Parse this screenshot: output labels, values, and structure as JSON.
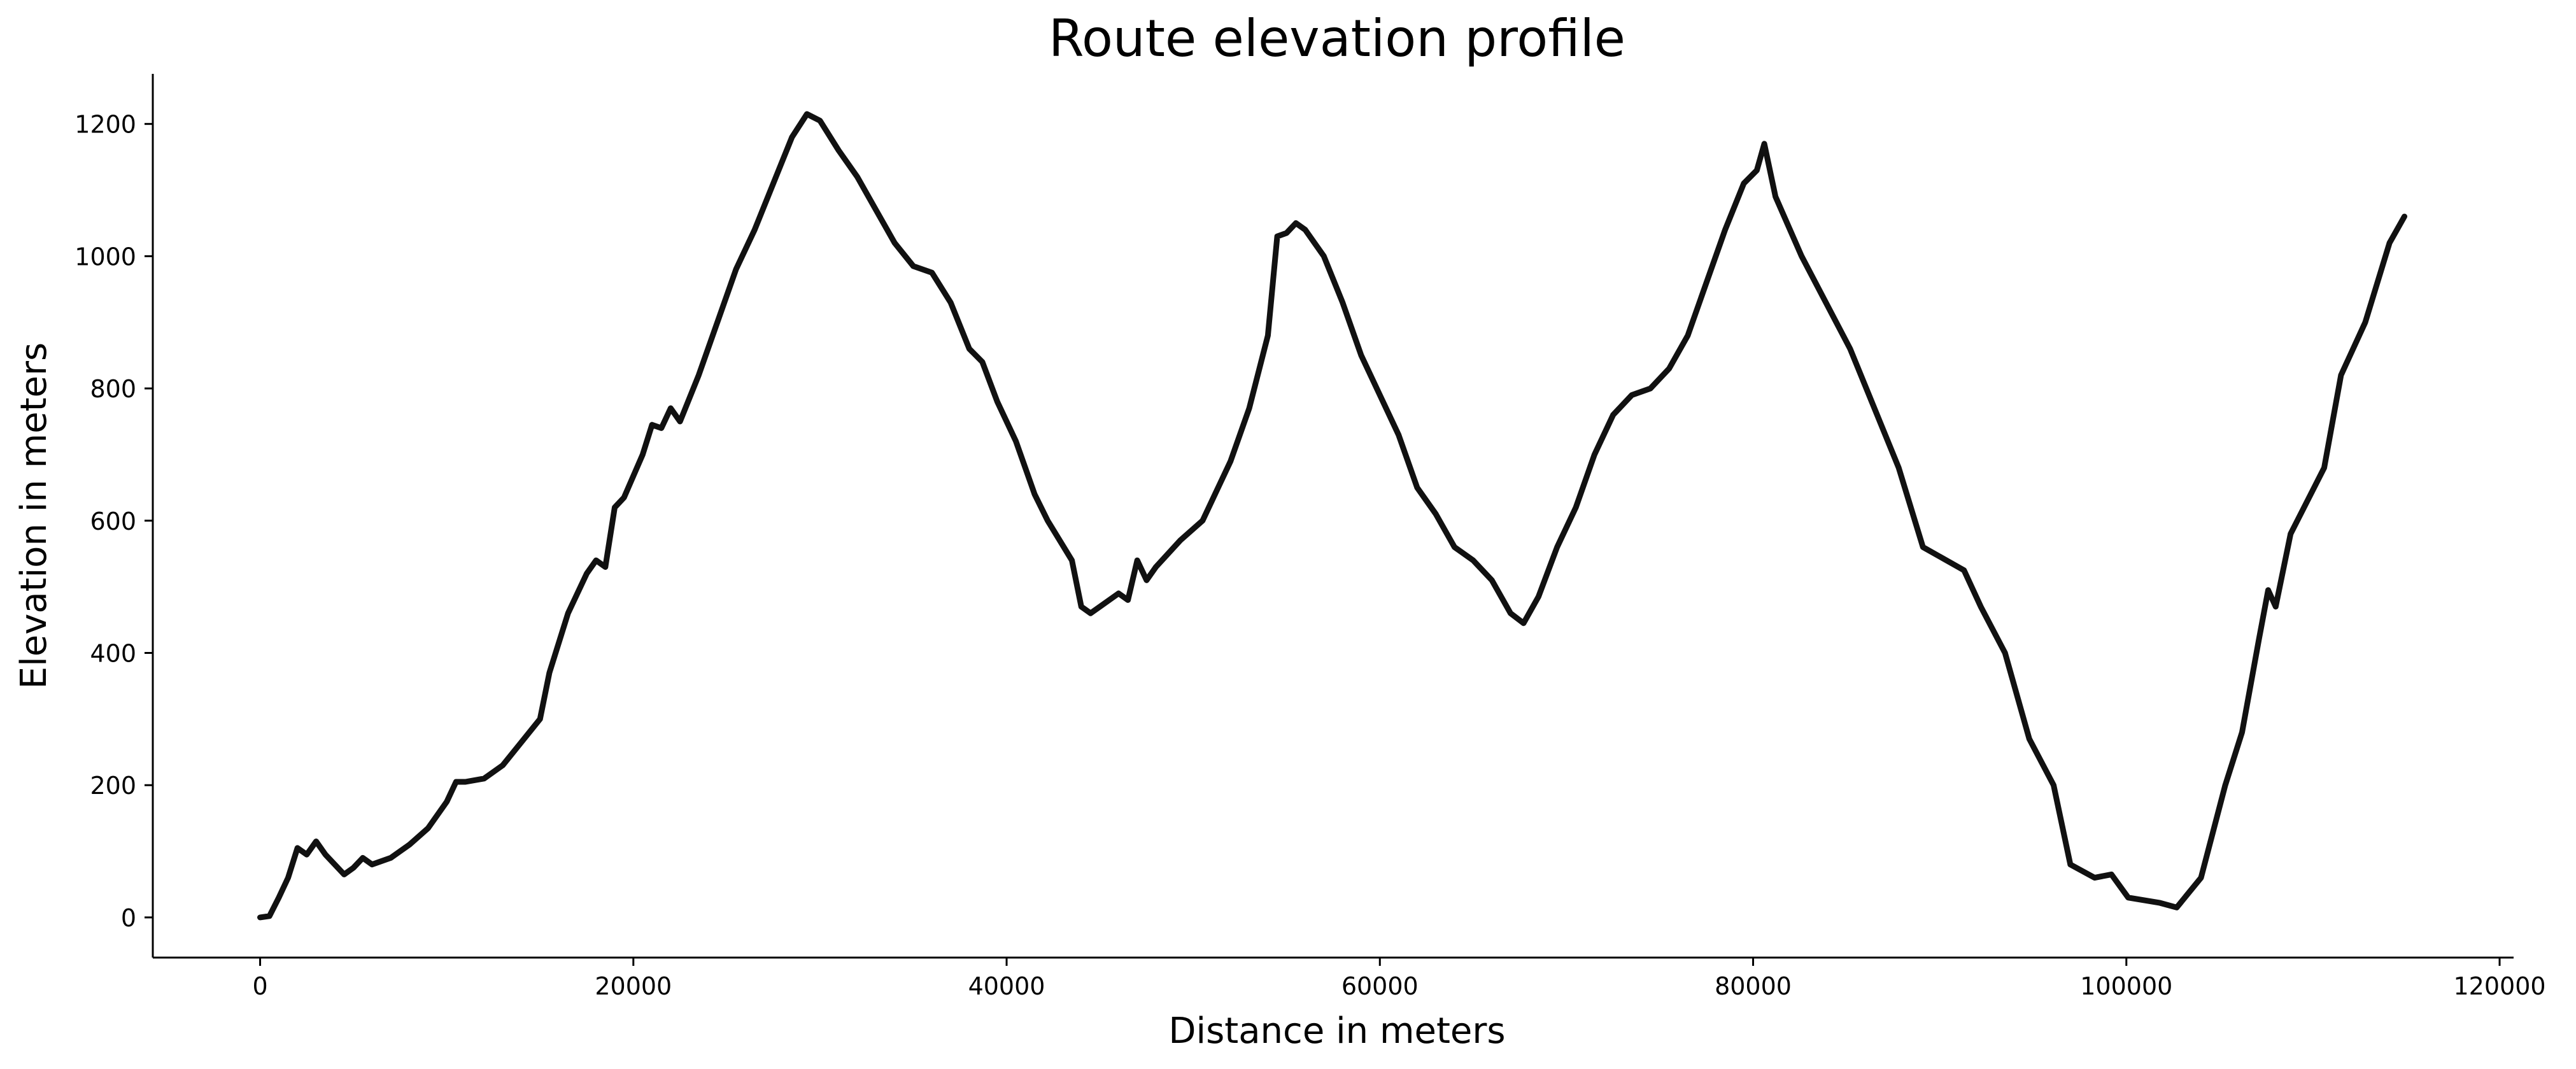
{
  "chart_data": {
    "type": "line",
    "title": "Route elevation profile",
    "x_label": "Distance in meters",
    "y_label": "Elevation in meters",
    "x": [
      0,
      500,
      1000,
      1500,
      2000,
      2500,
      3000,
      3500,
      4000,
      4500,
      5000,
      5500,
      6000,
      7000,
      8000,
      9000,
      10000,
      10500,
      11000,
      12000,
      13000,
      14000,
      15000,
      15500,
      16500,
      17500,
      18000,
      18500,
      19000,
      19500,
      20500,
      21000,
      21500,
      22000,
      22500,
      23500,
      24500,
      25500,
      26500,
      27500,
      28500,
      29300,
      30000,
      31000,
      32000,
      33000,
      34000,
      35000,
      36000,
      37000,
      38000,
      38700,
      39500,
      40500,
      41500,
      42200,
      43500,
      44000,
      44500,
      45000,
      46000,
      46500,
      47000,
      47500,
      48000,
      49300,
      50500,
      52000,
      53000,
      54000,
      54500,
      55000,
      55500,
      56000,
      57000,
      58000,
      59000,
      60000,
      61000,
      62000,
      63000,
      64000,
      65000,
      66000,
      67000,
      67700,
      68500,
      69500,
      70500,
      71500,
      72500,
      73500,
      74500,
      75500,
      76500,
      77500,
      78500,
      79500,
      80200,
      80600,
      81200,
      82600,
      85200,
      87800,
      89100,
      91300,
      92200,
      93500,
      94800,
      96100,
      97000,
      98300,
      99200,
      100100,
      101800,
      102700,
      104000,
      105300,
      106200,
      107100,
      107600,
      108000,
      108800,
      110600,
      111500,
      112800,
      114100,
      114900
    ],
    "values": [
      0,
      2,
      30,
      60,
      105,
      95,
      115,
      95,
      80,
      65,
      75,
      90,
      80,
      90,
      110,
      135,
      175,
      205,
      205,
      210,
      230,
      265,
      300,
      370,
      460,
      520,
      540,
      530,
      620,
      635,
      700,
      745,
      740,
      770,
      750,
      820,
      900,
      980,
      1040,
      1110,
      1180,
      1215,
      1205,
      1160,
      1120,
      1070,
      1020,
      985,
      975,
      930,
      860,
      840,
      780,
      720,
      640,
      600,
      540,
      470,
      460,
      470,
      490,
      480,
      540,
      510,
      530,
      570,
      600,
      690,
      770,
      880,
      1030,
      1035,
      1050,
      1040,
      1000,
      930,
      850,
      790,
      730,
      650,
      610,
      560,
      540,
      510,
      460,
      445,
      485,
      560,
      620,
      700,
      760,
      790,
      800,
      830,
      880,
      960,
      1040,
      1110,
      1130,
      1170,
      1090,
      1000,
      860,
      680,
      560,
      525,
      470,
      400,
      270,
      200,
      80,
      60,
      65,
      30,
      22,
      15,
      60,
      200,
      280,
      420,
      495,
      470,
      580,
      680,
      820,
      900,
      1020,
      1060
    ],
    "color": "#111111",
    "xlim": [
      -5750,
      120750
    ],
    "xticks": [
      0,
      20000,
      40000,
      60000,
      80000,
      100000,
      120000
    ],
    "ylim": [
      -60.75,
      1275.75
    ],
    "yticks": [
      0,
      200,
      400,
      600,
      800,
      1000,
      1200
    ]
  }
}
